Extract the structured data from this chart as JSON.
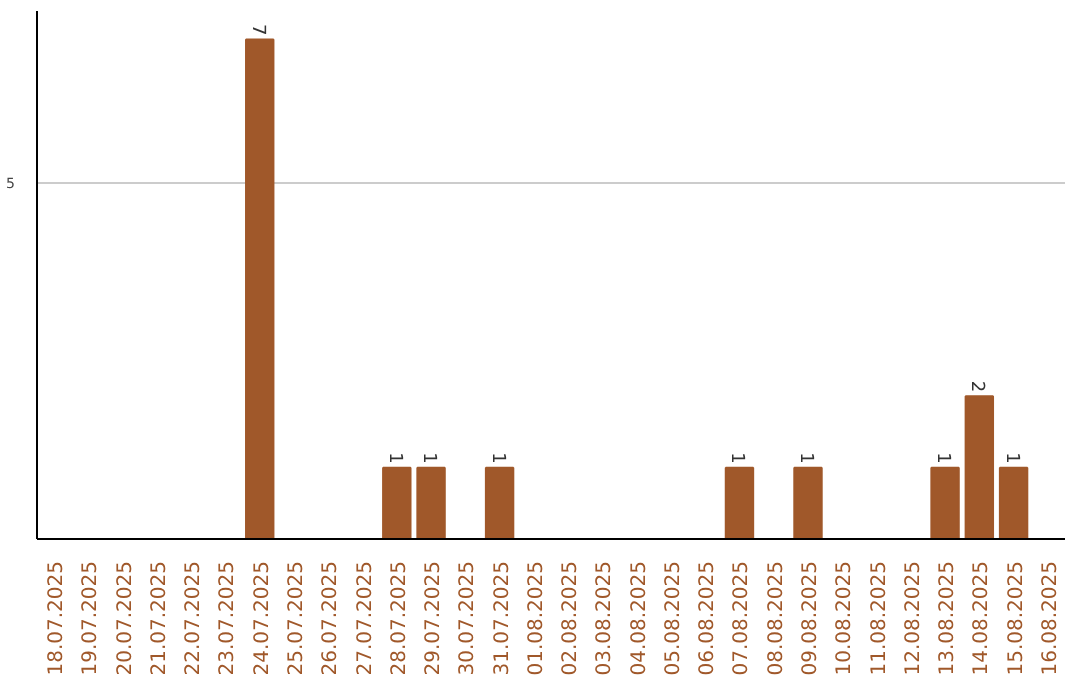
{
  "chart_data": {
    "type": "bar",
    "categories": [
      "18.07.2025",
      "19.07.2025",
      "20.07.2025",
      "21.07.2025",
      "22.07.2025",
      "23.07.2025",
      "24.07.2025",
      "25.07.2025",
      "26.07.2025",
      "27.07.2025",
      "28.07.2025",
      "29.07.2025",
      "30.07.2025",
      "31.07.2025",
      "01.08.2025",
      "02.08.2025",
      "03.08.2025",
      "04.08.2025",
      "05.08.2025",
      "06.08.2025",
      "07.08.2025",
      "08.08.2025",
      "09.08.2025",
      "10.08.2025",
      "11.08.2025",
      "12.08.2025",
      "13.08.2025",
      "14.08.2025",
      "15.08.2025",
      "16.08.2025"
    ],
    "values": [
      0,
      0,
      0,
      0,
      0,
      0,
      7,
      0,
      0,
      0,
      1,
      1,
      0,
      1,
      0,
      0,
      0,
      0,
      0,
      0,
      1,
      0,
      1,
      0,
      0,
      0,
      1,
      2,
      1,
      0
    ],
    "value_labels": [
      null,
      null,
      null,
      null,
      null,
      null,
      "7",
      null,
      null,
      null,
      "1",
      "1",
      null,
      "1",
      null,
      null,
      null,
      null,
      null,
      null,
      "1",
      null,
      "1",
      null,
      null,
      null,
      "1",
      "2",
      "1",
      null
    ],
    "color": "#a0582a",
    "ylim": [
      0,
      7.4
    ],
    "yticks": [
      5
    ],
    "grid": "y"
  }
}
